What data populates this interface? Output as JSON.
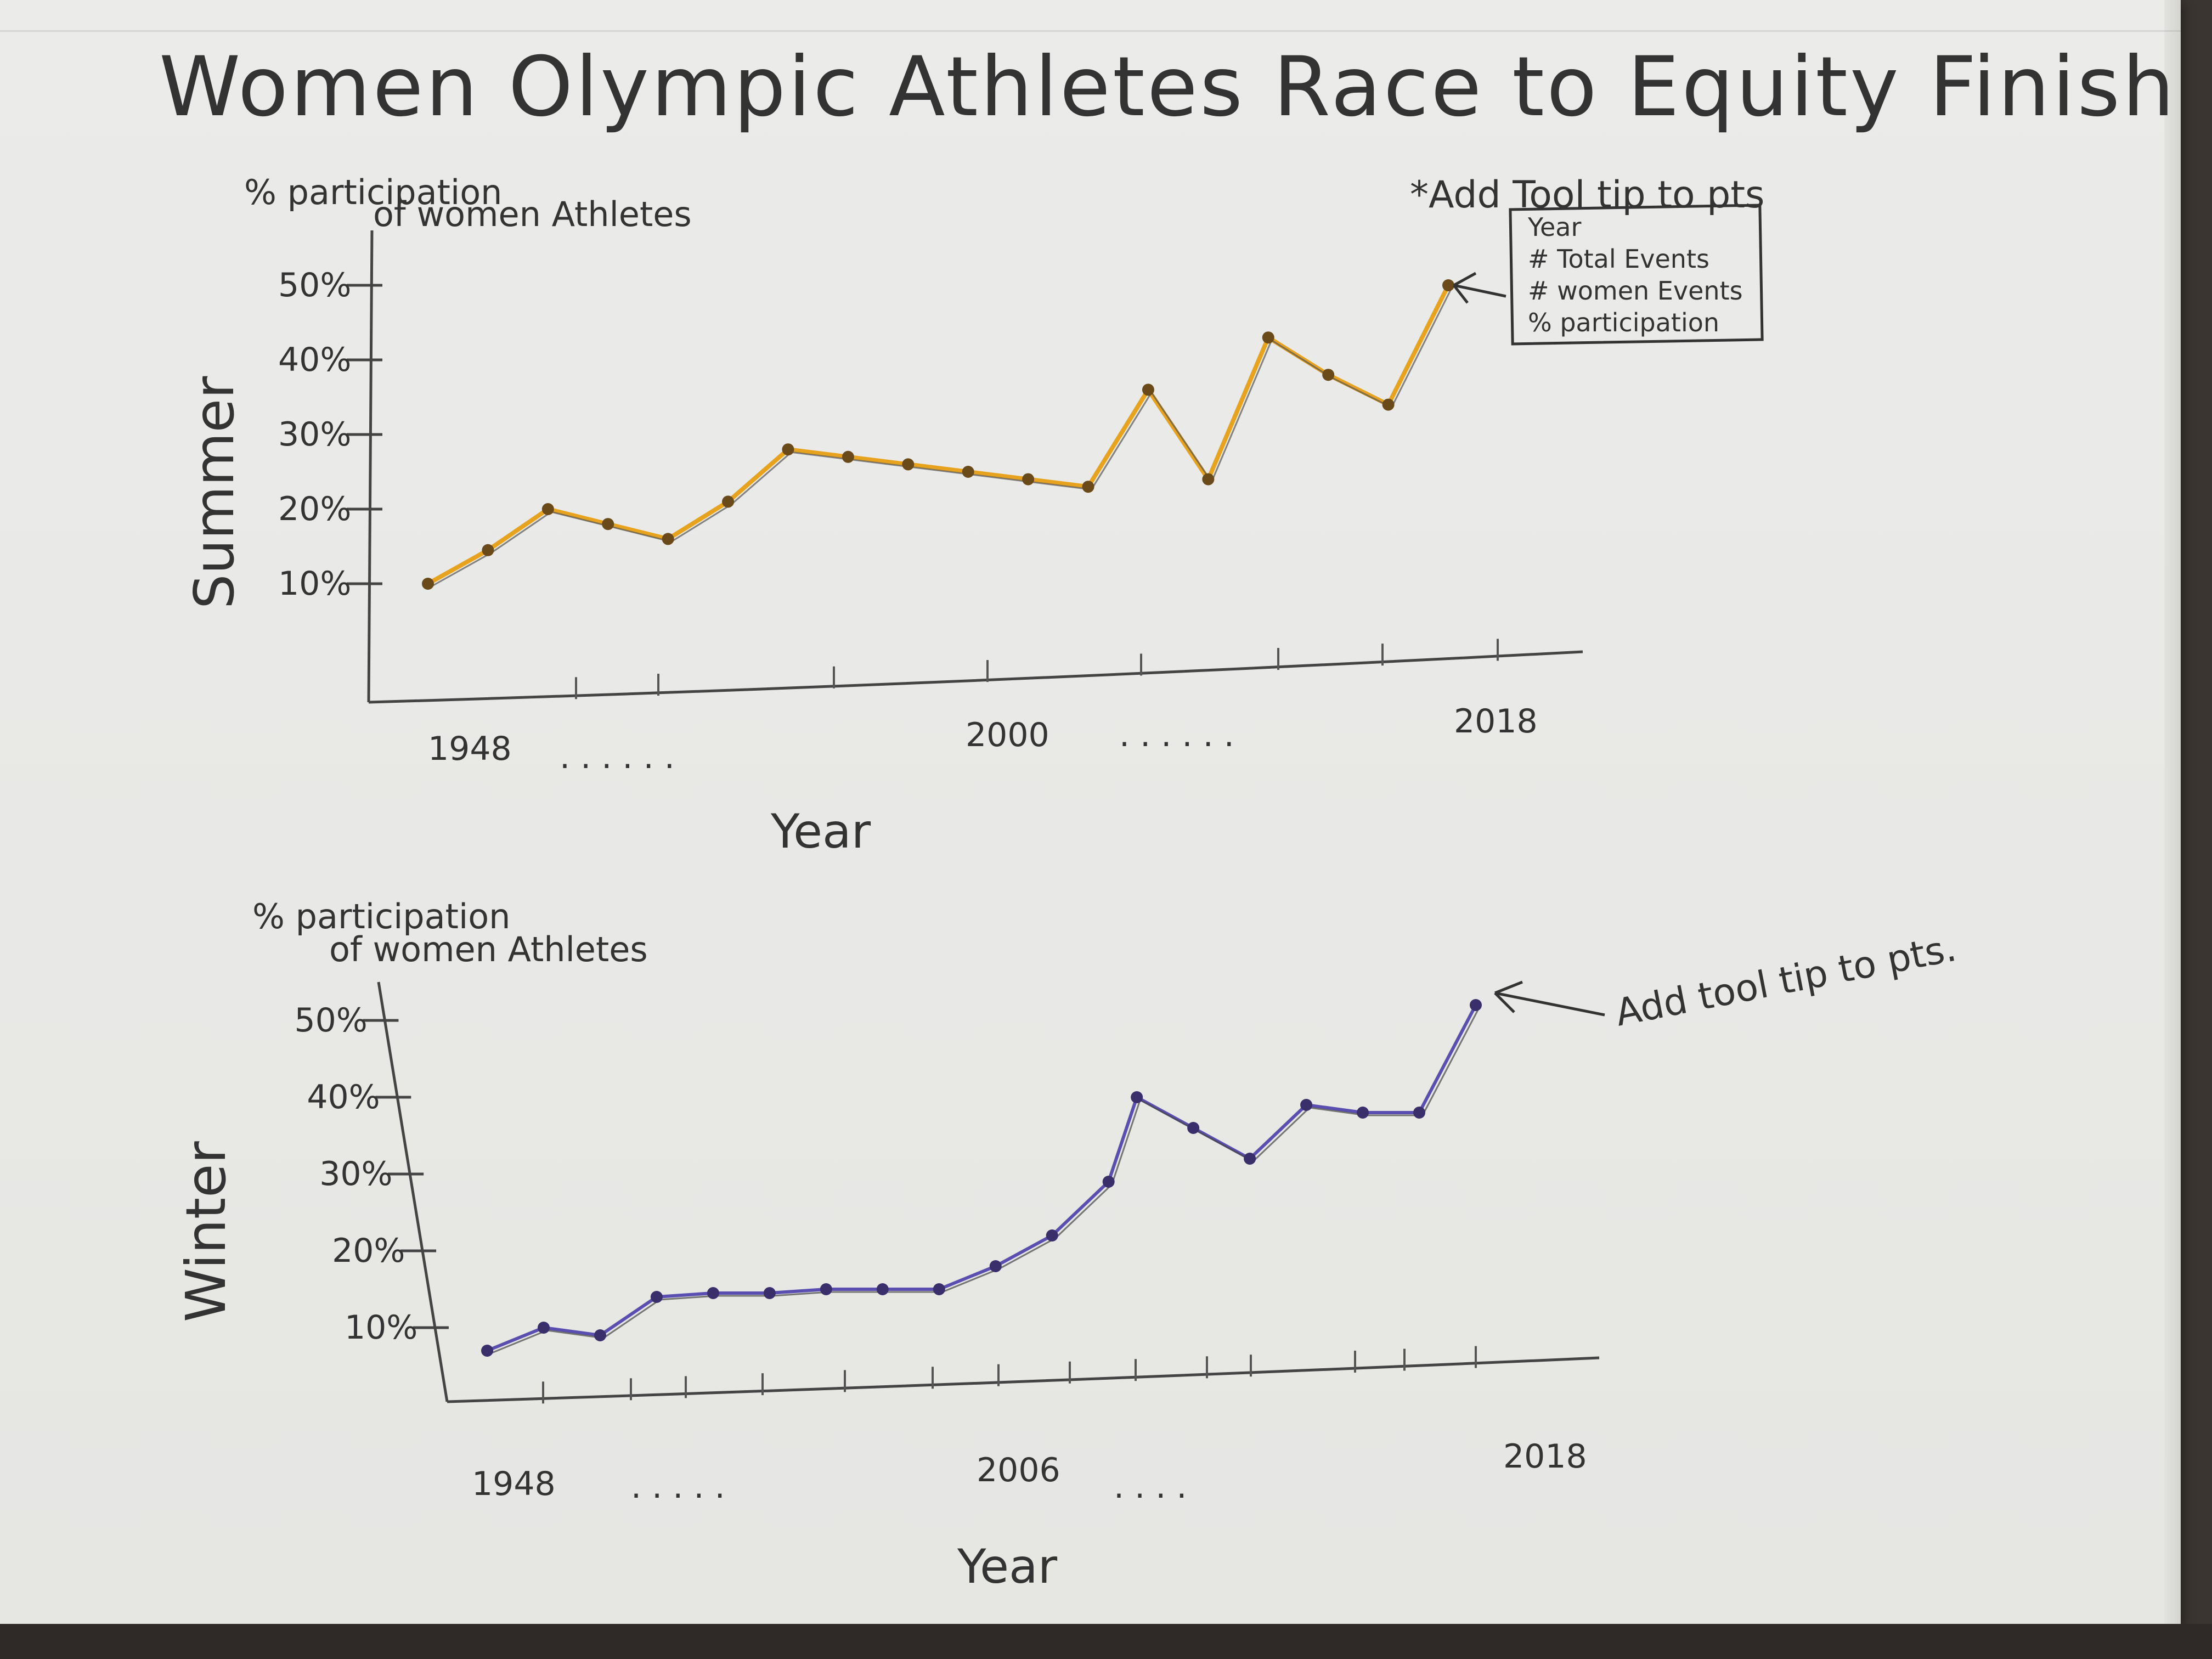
{
  "title": "Women Olympic Athletes Race to Equity Finish Line",
  "chart_data": [
    {
      "type": "line",
      "panel_label": "Summer",
      "ylabel": "% participation of women Athletes",
      "xlabel": "Year",
      "y_ticks": [
        "10%",
        "20%",
        "30%",
        "40%",
        "50%"
      ],
      "x_ticks": [
        "1948",
        "2000",
        "2018"
      ],
      "ylim": [
        0,
        55
      ],
      "color": "#e8a31e",
      "x": [
        1948,
        1952,
        1956,
        1960,
        1964,
        1968,
        1972,
        1976,
        1980,
        1984,
        1988,
        1992,
        1996,
        2000,
        2004,
        2008,
        2012,
        2016
      ],
      "values": [
        10,
        14.5,
        20,
        18,
        16,
        21,
        28,
        27,
        26,
        25,
        24,
        23,
        36,
        24,
        43,
        38,
        34,
        50
      ],
      "annotation": {
        "text": "*Add Tool tip to pts",
        "tooltip_lines": [
          "Year",
          "# Total Events",
          "# women Events",
          "% participation"
        ]
      }
    },
    {
      "type": "line",
      "panel_label": "Winter",
      "ylabel": "% participation of women Athletes",
      "xlabel": "Year",
      "y_ticks": [
        "10%",
        "20%",
        "30%",
        "40%",
        "50%"
      ],
      "x_ticks": [
        "1948",
        "2006",
        "2018"
      ],
      "ylim": [
        0,
        55
      ],
      "color": "#5a4fb0",
      "x": [
        1948,
        1952,
        1956,
        1960,
        1964,
        1968,
        1972,
        1976,
        1980,
        1984,
        1988,
        1992,
        1994,
        1998,
        2002,
        2006,
        2010,
        2014,
        2018
      ],
      "values": [
        7,
        10,
        9,
        14,
        14.5,
        14.5,
        15,
        15,
        15,
        18,
        22,
        29,
        40,
        36,
        32,
        39,
        38,
        38,
        52
      ],
      "annotation": {
        "text": "Add tool tip to pts."
      }
    }
  ]
}
